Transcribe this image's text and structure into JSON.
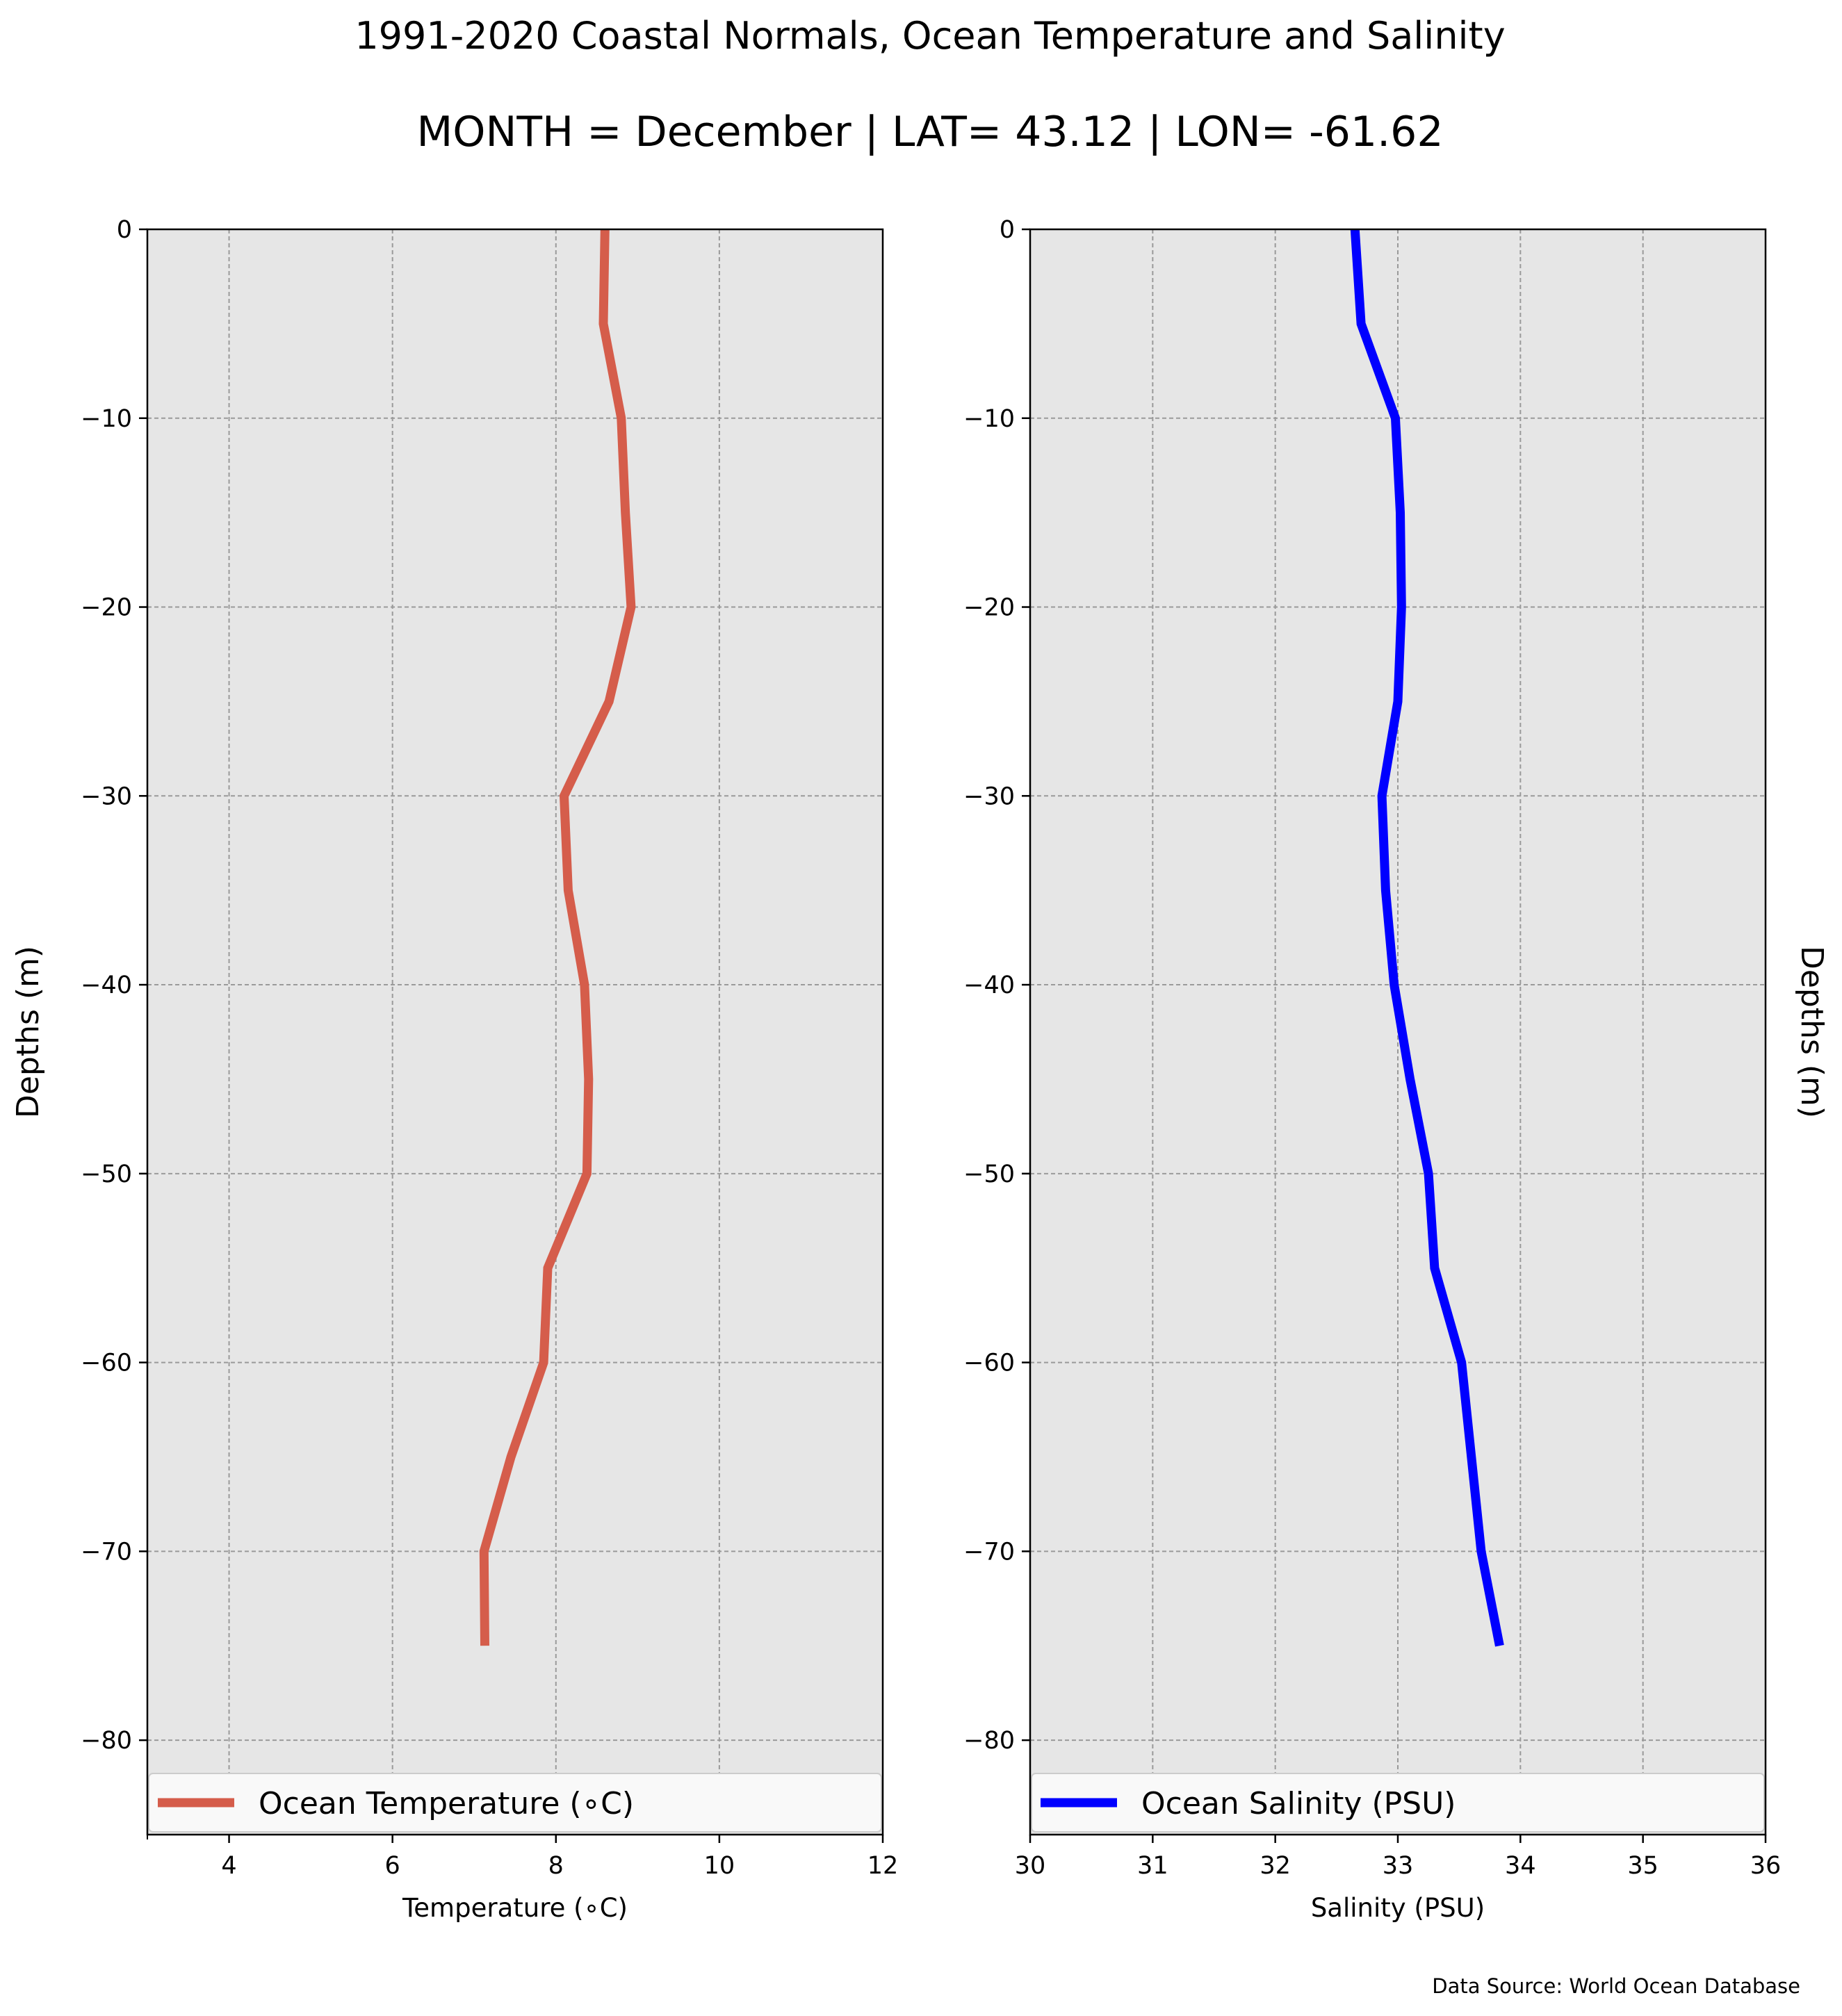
{
  "figure": {
    "title": "1991-2020 Coastal Normals, Ocean Temperature and Salinity",
    "subtitle": "MONTH = December | LAT= 43.12 | LON= -61.62",
    "source_note": "Data Source: World Ocean Database"
  },
  "colors": {
    "plot_background": "#e6e6e6",
    "grid": "#9a9a9a",
    "temperature_line": "#d55d4b",
    "salinity_line": "#0000ff",
    "legend_background": "#f9f9f9"
  },
  "chart_data": [
    {
      "type": "line",
      "orientation": "vertical-profile",
      "xlabel": "Temperature ($^\\circ$C)",
      "xlabel_display": "Temperature (∘C)",
      "ylabel": "Depths (m)",
      "xlim": [
        3,
        12
      ],
      "ylim": [
        -85,
        0
      ],
      "xticks": [
        "4",
        "6",
        "8",
        "10",
        "12"
      ],
      "yticks": [
        "0",
        "−10",
        "−20",
        "−30",
        "−40",
        "−50",
        "−60",
        "−70",
        "−80"
      ],
      "grid": true,
      "legend_position": "bottom",
      "series": [
        {
          "name": "Ocean Temperature (∘C)",
          "color": "#d55d4b",
          "depth": [
            0,
            -5,
            -10,
            -15,
            -20,
            -25,
            -30,
            -35,
            -40,
            -45,
            -50,
            -55,
            -60,
            -65,
            -70,
            -75
          ],
          "x": [
            8.6,
            8.58,
            8.8,
            8.85,
            8.92,
            8.65,
            8.1,
            8.15,
            8.35,
            8.4,
            8.38,
            7.9,
            7.85,
            7.45,
            7.12,
            7.13
          ]
        }
      ]
    },
    {
      "type": "line",
      "orientation": "vertical-profile",
      "xlabel": "Salinity (PSU)",
      "ylabel": "Depths (m)",
      "xlim": [
        30,
        36
      ],
      "ylim": [
        -85,
        0
      ],
      "xticks": [
        "30",
        "31",
        "32",
        "33",
        "34",
        "35",
        "36"
      ],
      "yticks": [
        "0",
        "−10",
        "−20",
        "−30",
        "−40",
        "−50",
        "−60",
        "−70",
        "−80"
      ],
      "grid": true,
      "legend_position": "bottom",
      "series": [
        {
          "name": "Ocean Salinity (PSU)",
          "color": "#0000ff",
          "depth": [
            0,
            -5,
            -10,
            -15,
            -20,
            -25,
            -30,
            -35,
            -40,
            -45,
            -50,
            -55,
            -60,
            -65,
            -70,
            -75
          ],
          "x": [
            32.65,
            32.7,
            32.98,
            33.02,
            33.03,
            33.0,
            32.87,
            32.9,
            32.97,
            33.1,
            33.25,
            33.3,
            33.52,
            33.6,
            33.68,
            33.83
          ]
        }
      ]
    }
  ]
}
